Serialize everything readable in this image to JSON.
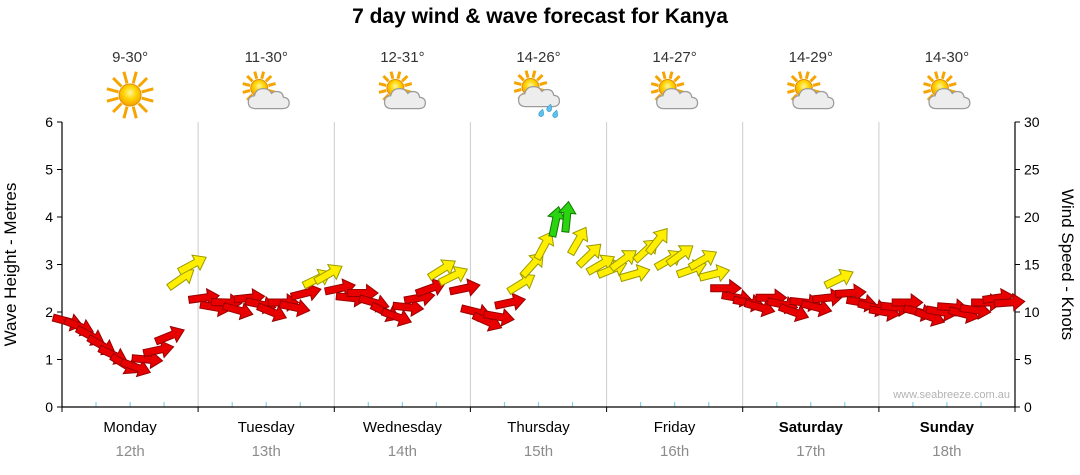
{
  "title": "7 day wind & wave forecast for Kanya",
  "watermark": "www.seabreeze.com.au",
  "axes": {
    "left_label": "Wave Height - Metres",
    "right_label": "Wind Speed - Knots",
    "left_min": 0,
    "left_max": 6,
    "left_step": 1,
    "right_min": 0,
    "right_max": 30,
    "right_step": 5
  },
  "days": [
    {
      "name": "Monday",
      "date": "12th",
      "temp": "9-30°",
      "icon": "sunny",
      "weekend": false
    },
    {
      "name": "Tuesday",
      "date": "13th",
      "temp": "11-30°",
      "icon": "partly-cloudy",
      "weekend": false
    },
    {
      "name": "Wednesday",
      "date": "14th",
      "temp": "12-31°",
      "icon": "partly-cloudy",
      "weekend": false
    },
    {
      "name": "Thursday",
      "date": "15th",
      "temp": "14-26°",
      "icon": "rain-showers",
      "weekend": false
    },
    {
      "name": "Friday",
      "date": "16th",
      "temp": "14-27°",
      "icon": "partly-cloudy",
      "weekend": false
    },
    {
      "name": "Saturday",
      "date": "17th",
      "temp": "14-29°",
      "icon": "partly-cloudy",
      "weekend": true
    },
    {
      "name": "Sunday",
      "date": "18th",
      "temp": "14-30°",
      "icon": "partly-cloudy",
      "weekend": true
    }
  ],
  "chart_data": {
    "type": "wind-arrow-series",
    "title": "7 day wind & wave forecast for Kanya",
    "x_unit": "hours",
    "x_range": [
      0,
      168
    ],
    "wave_height_m_range": [
      0,
      6
    ],
    "wind_speed_knots_range": [
      0,
      30
    ],
    "point_format": [
      "hour",
      "wind_speed_knots",
      "direction_deg"
    ],
    "color_thresholds": {
      "yellow_at": 13,
      "green_at": 18
    },
    "colors": {
      "red": "#e80000",
      "yellow": "#ffee00",
      "green": "#2bd410"
    },
    "outline_colors": {
      "red": "#990000",
      "yellow": "#9a9a00",
      "green": "#117700"
    },
    "grid_color": "#cccccc",
    "minor_tick_color": "#7fd4ea",
    "points": [
      [
        1,
        9,
        15
      ],
      [
        3,
        8.5,
        22
      ],
      [
        5,
        7.5,
        28
      ],
      [
        7,
        6.5,
        30
      ],
      [
        9,
        5.5,
        25
      ],
      [
        11,
        4.5,
        32
      ],
      [
        13,
        4.2,
        20
      ],
      [
        15,
        5,
        5
      ],
      [
        17,
        6,
        -12
      ],
      [
        19,
        7.5,
        -22
      ],
      [
        21,
        13.5,
        -35
      ],
      [
        23,
        15,
        -28
      ],
      [
        25,
        11.5,
        -8
      ],
      [
        27,
        10.5,
        10
      ],
      [
        29,
        11,
        2
      ],
      [
        31,
        10.2,
        16
      ],
      [
        33,
        11.5,
        -6
      ],
      [
        35,
        10.8,
        12
      ],
      [
        37,
        10,
        22
      ],
      [
        39,
        11,
        0
      ],
      [
        41,
        10.5,
        12
      ],
      [
        43,
        12,
        -14
      ],
      [
        45,
        13.5,
        -26
      ],
      [
        47,
        14,
        -30
      ],
      [
        49,
        12.5,
        -12
      ],
      [
        51,
        11.5,
        6
      ],
      [
        53,
        12,
        0
      ],
      [
        55,
        11,
        16
      ],
      [
        57,
        10,
        26
      ],
      [
        59,
        9.5,
        20
      ],
      [
        61,
        10.5,
        6
      ],
      [
        63,
        11.5,
        -10
      ],
      [
        65,
        12.5,
        -20
      ],
      [
        67,
        14.5,
        -32
      ],
      [
        69,
        13.8,
        -26
      ],
      [
        71,
        12.5,
        -12
      ],
      [
        73,
        10,
        14
      ],
      [
        75,
        9,
        24
      ],
      [
        77,
        9.5,
        10
      ],
      [
        79,
        11,
        -12
      ],
      [
        81,
        13,
        -32
      ],
      [
        83,
        15,
        -48
      ],
      [
        85,
        17,
        -62
      ],
      [
        87,
        19.5,
        -78
      ],
      [
        89,
        20,
        -84
      ],
      [
        91,
        17.5,
        -60
      ],
      [
        93,
        16,
        -44
      ],
      [
        95,
        15,
        -30
      ],
      [
        97,
        14.5,
        -22
      ],
      [
        99,
        15.5,
        -36
      ],
      [
        101,
        14,
        -16
      ],
      [
        103,
        16.5,
        -42
      ],
      [
        105,
        17.5,
        -52
      ],
      [
        107,
        15.5,
        -30
      ],
      [
        109,
        16,
        -36
      ],
      [
        111,
        14.5,
        -20
      ],
      [
        113,
        15.5,
        -30
      ],
      [
        115,
        14,
        -14
      ],
      [
        117,
        12.5,
        0
      ],
      [
        119,
        11.5,
        10
      ],
      [
        121,
        11,
        10
      ],
      [
        123,
        10.5,
        16
      ],
      [
        125,
        11.5,
        0
      ],
      [
        127,
        10.8,
        12
      ],
      [
        129,
        10,
        20
      ],
      [
        131,
        11,
        6
      ],
      [
        133,
        10.5,
        14
      ],
      [
        135,
        11.5,
        -6
      ],
      [
        137,
        13.5,
        -26
      ],
      [
        139,
        12,
        -4
      ],
      [
        141,
        11,
        10
      ],
      [
        143,
        10.5,
        14
      ],
      [
        145,
        10,
        10
      ],
      [
        147,
        10.5,
        6
      ],
      [
        149,
        11,
        0
      ],
      [
        151,
        10,
        14
      ],
      [
        153,
        9.5,
        20
      ],
      [
        155,
        10,
        10
      ],
      [
        157,
        10.5,
        4
      ],
      [
        159,
        9.8,
        14
      ],
      [
        161,
        10.2,
        8
      ],
      [
        163,
        11,
        0
      ],
      [
        165,
        11.5,
        -8
      ],
      [
        167,
        11,
        -4
      ]
    ]
  }
}
